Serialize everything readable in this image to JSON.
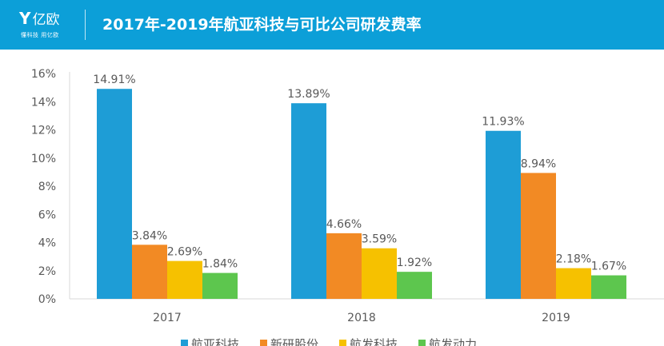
{
  "header": {
    "logo_text": "亿欧",
    "logo_slogan": "懂科技 用亿欧",
    "title": "2017年-2019年航亚科技与可比公司研发费率"
  },
  "chart_data": {
    "type": "bar",
    "title": "2017年-2019年航亚科技与可比公司研发费率",
    "categories": [
      "2017",
      "2018",
      "2019"
    ],
    "series": [
      {
        "name": "航亚科技",
        "color": "#1e9dd6",
        "values": [
          14.91,
          13.89,
          11.93
        ],
        "labels": [
          "14.91%",
          "13.89%",
          "11.93%"
        ]
      },
      {
        "name": "新研股份",
        "color": "#f28a24",
        "values": [
          3.84,
          4.66,
          8.94
        ],
        "labels": [
          "3.84%",
          "4.66%",
          "8.94%"
        ]
      },
      {
        "name": "航发科技",
        "color": "#f6c100",
        "values": [
          2.69,
          3.59,
          2.18
        ],
        "labels": [
          "2.69%",
          "3.59%",
          "2.18%"
        ]
      },
      {
        "name": "航发动力",
        "color": "#5dc64e",
        "values": [
          1.84,
          1.92,
          1.67
        ],
        "labels": [
          "1.84%",
          "1.92%",
          "1.67%"
        ]
      }
    ],
    "ylim": [
      0,
      16
    ],
    "yticks": [
      "0%",
      "2%",
      "4%",
      "6%",
      "8%",
      "10%",
      "12%",
      "14%",
      "16%"
    ],
    "grid": false,
    "legend": "bottom"
  }
}
